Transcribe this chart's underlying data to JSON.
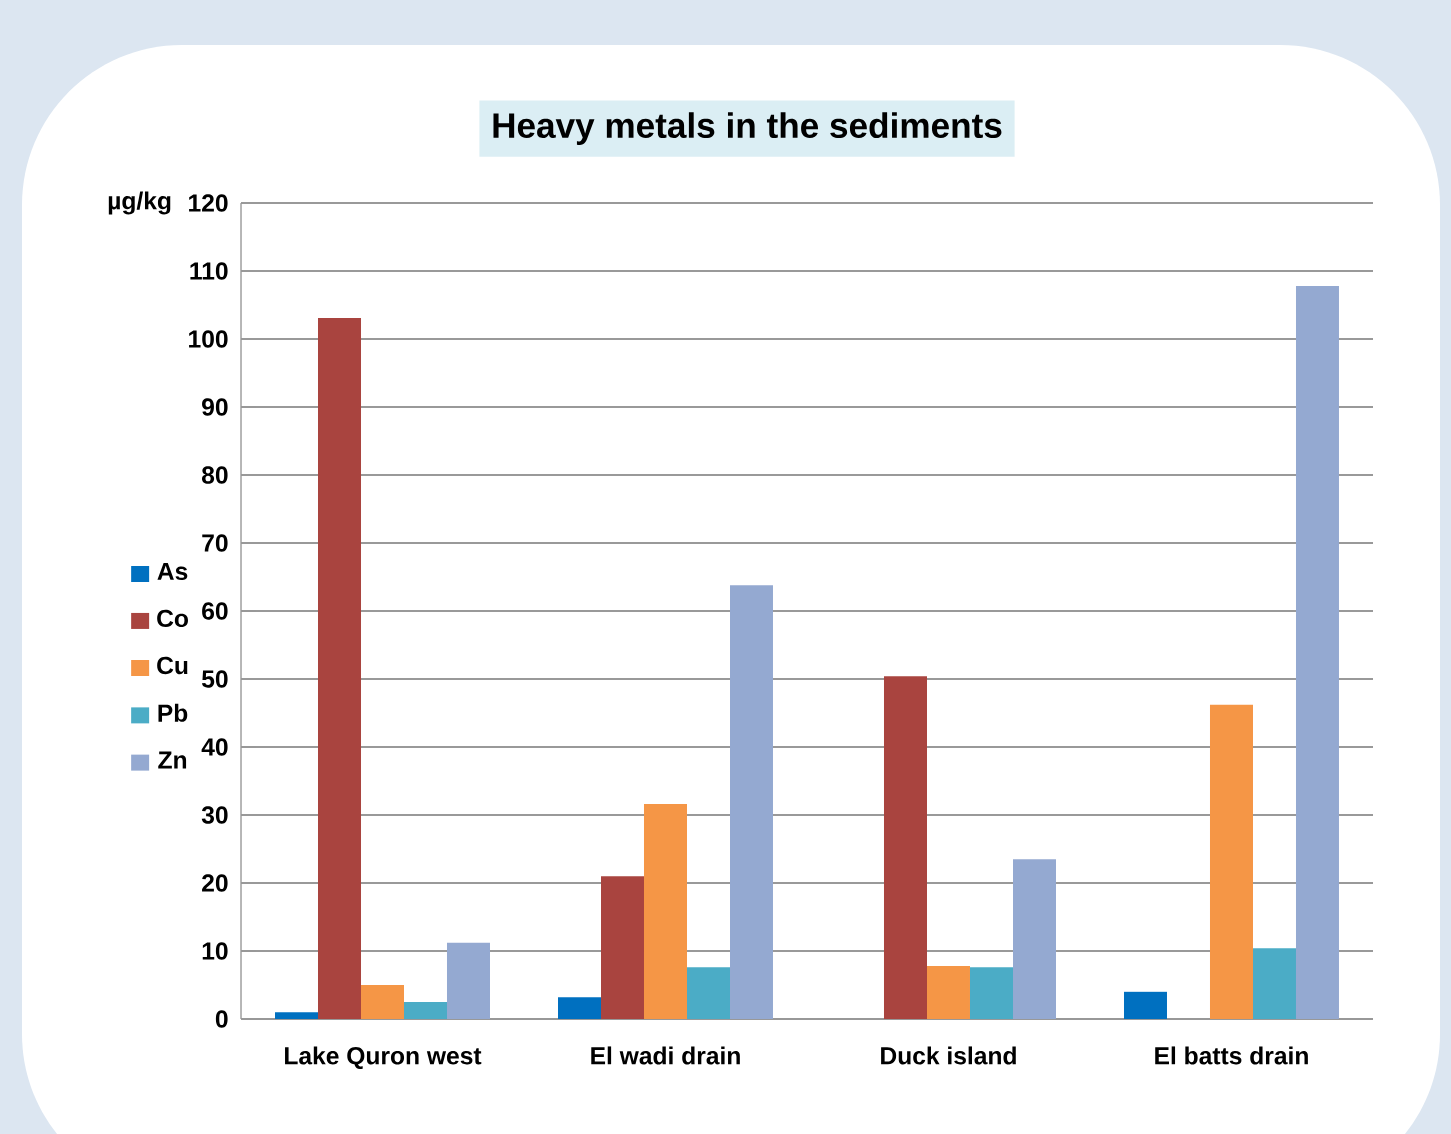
{
  "chart_data": {
    "type": "bar",
    "title": "Heavy metals in the sediments",
    "ylabel": "µg/kg",
    "categories": [
      "Lake Quron west",
      "El wadi drain",
      "Duck island",
      "El batts drain"
    ],
    "series": [
      {
        "name": "As",
        "color": "#0070c0",
        "values": [
          1.0,
          3.2,
          null,
          4.0
        ]
      },
      {
        "name": "Co",
        "color": "#a9443f",
        "values": [
          103.1,
          21.0,
          50.4,
          null
        ]
      },
      {
        "name": "Cu",
        "color": "#f59646",
        "values": [
          5.0,
          31.6,
          7.8,
          46.2
        ]
      },
      {
        "name": "Pb",
        "color": "#4bacc6",
        "values": [
          2.5,
          7.6,
          7.6,
          10.4
        ]
      },
      {
        "name": "Zn",
        "color": "#94a9d1",
        "values": [
          11.2,
          63.8,
          23.5,
          107.8
        ]
      }
    ],
    "ylim": [
      0,
      120
    ],
    "yticks": [
      0,
      10,
      20,
      30,
      40,
      50,
      60,
      70,
      80,
      90,
      100,
      110,
      120
    ],
    "grid": "y",
    "legend": "left"
  }
}
